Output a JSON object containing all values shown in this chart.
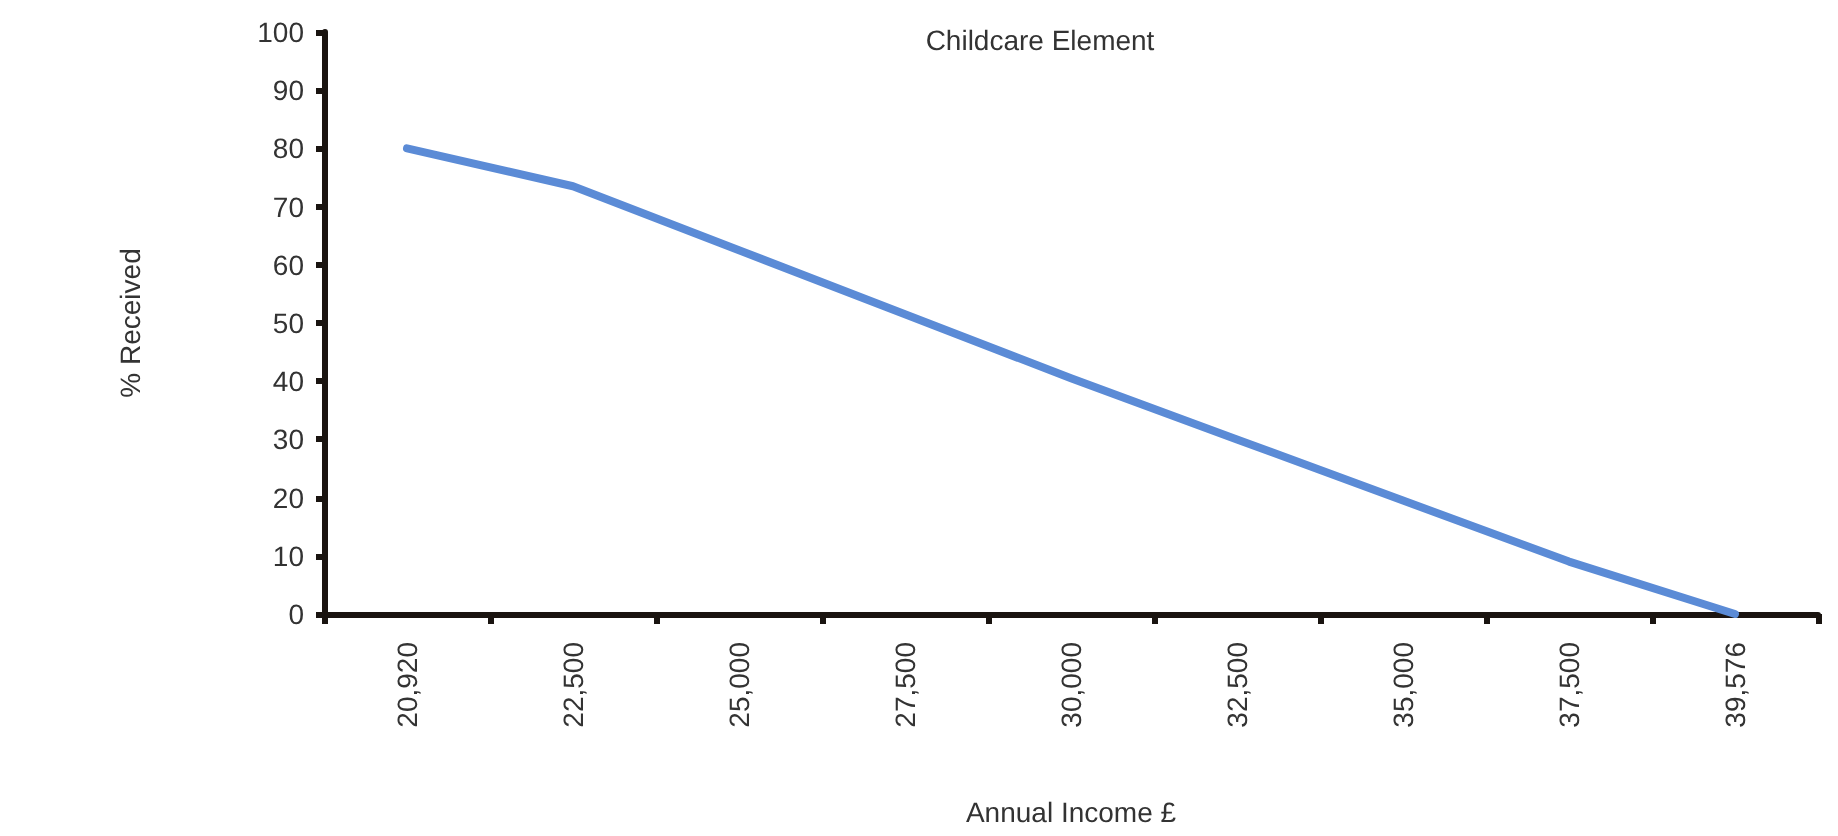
{
  "chart_data": {
    "type": "line",
    "title": "Childcare Element",
    "xlabel": "Annual Income £",
    "ylabel": "% Received",
    "categories": [
      "20,920",
      "22,500",
      "25,000",
      "27,500",
      "30,000",
      "32,500",
      "35,000",
      "37,500",
      "39,576"
    ],
    "series": [
      {
        "color": "#5b8bd6",
        "values": [
          80,
          73.5,
          62.5,
          51.5,
          40.5,
          30,
          19.5,
          9,
          0
        ]
      }
    ],
    "ylim": [
      0,
      100
    ],
    "yticks": [
      0,
      10,
      20,
      30,
      40,
      50,
      60,
      70,
      80,
      90,
      100
    ],
    "grid": false,
    "marker": "none",
    "line_style": "solid"
  }
}
